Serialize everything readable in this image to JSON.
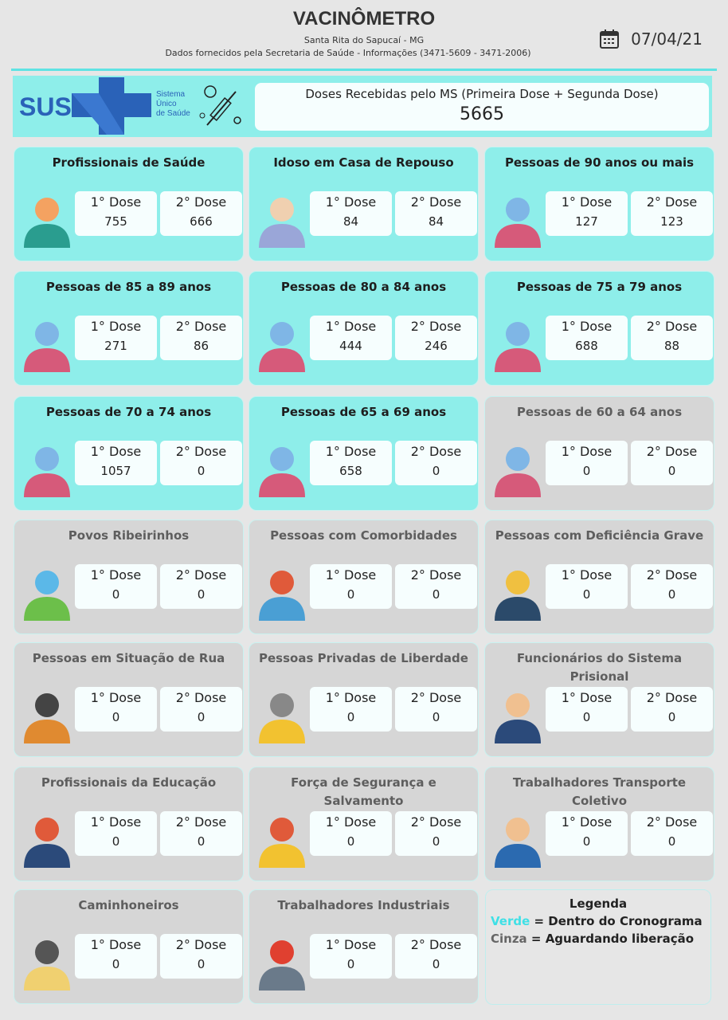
{
  "header": {
    "title": "VACINÔMETRO",
    "city": "Santa Rita do Sapucaí - MG",
    "source": "Dados fornecidos pela Secretaria de Saúde - Informações (3471-5609 - 3471-2006)",
    "date": "07/04/21",
    "date_icon": "calendar-icon"
  },
  "banner": {
    "logo_text": "SUS",
    "logo_sub": [
      "Sistema",
      "Único",
      "de Saúde"
    ],
    "doses_label": "Doses Recebidas pelo MS (Primeira Dose + Segunda Dose)",
    "doses_value": "5665"
  },
  "dose_labels": {
    "first": "1° Dose",
    "second": "2° Dose"
  },
  "colors": {
    "teal": "#8eeeea",
    "gray": "#d6d6d6",
    "verde": "#3fe0e6",
    "cinza": "#666666"
  },
  "cards": [
    {
      "title": "Profissionais de Saúde",
      "status": "teal",
      "icon": "health-worker-icon",
      "first": "755",
      "second": "666"
    },
    {
      "title": "Idoso em Casa de Repouso",
      "status": "teal",
      "icon": "elderly-couple-icon",
      "first": "84",
      "second": "84"
    },
    {
      "title": "Pessoas de 90 anos ou mais",
      "status": "teal",
      "icon": "elderly-people-icon",
      "first": "127",
      "second": "123"
    },
    {
      "title": "Pessoas de 85 a 89 anos",
      "status": "teal",
      "icon": "elderly-people-icon",
      "first": "271",
      "second": "86"
    },
    {
      "title": "Pessoas de 80 a 84 anos",
      "status": "teal",
      "icon": "elderly-people-icon",
      "first": "444",
      "second": "246"
    },
    {
      "title": "Pessoas de 75 a 79 anos",
      "status": "teal",
      "icon": "elderly-people-icon",
      "first": "688",
      "second": "88"
    },
    {
      "title": "Pessoas de 70 a 74 anos",
      "status": "teal",
      "icon": "elderly-people-icon",
      "first": "1057",
      "second": "0"
    },
    {
      "title": "Pessoas de 65 a 69 anos",
      "status": "teal",
      "icon": "elderly-people-icon",
      "first": "658",
      "second": "0"
    },
    {
      "title": "Pessoas de 60 a 64 anos",
      "status": "gray",
      "icon": "elderly-people-icon",
      "first": "0",
      "second": "0"
    },
    {
      "title": "Povos Ribeirinhos",
      "status": "gray",
      "icon": "river-landscape-icon",
      "first": "0",
      "second": "0"
    },
    {
      "title": "Pessoas com Comorbidades",
      "status": "gray",
      "icon": "medical-record-icon",
      "first": "0",
      "second": "0"
    },
    {
      "title": "Pessoas com Deficiência Grave",
      "status": "gray",
      "icon": "wheelchair-icon",
      "first": "0",
      "second": "0"
    },
    {
      "title": "Pessoas em Situação de Rua",
      "status": "gray",
      "icon": "homeless-icon",
      "first": "0",
      "second": "0"
    },
    {
      "title": "Pessoas Privadas de Liberdade",
      "status": "gray",
      "icon": "handcuffs-icon",
      "first": "0",
      "second": "0"
    },
    {
      "title": "Funcionários do Sistema Prisional",
      "status": "gray",
      "icon": "police-officer-icon",
      "first": "0",
      "second": "0"
    },
    {
      "title": "Profissionais da Educação",
      "status": "gray",
      "icon": "teacher-icon",
      "first": "0",
      "second": "0"
    },
    {
      "title": "Força de Segurança e Salvamento",
      "status": "gray",
      "icon": "rescue-vest-icon",
      "first": "0",
      "second": "0"
    },
    {
      "title": "Trabalhadores Transporte Coletivo",
      "status": "gray",
      "icon": "bus-driver-icon",
      "first": "0",
      "second": "0"
    },
    {
      "title": "Caminhoneiros",
      "status": "gray",
      "icon": "truck-driver-icon",
      "first": "0",
      "second": "0"
    },
    {
      "title": "Trabalhadores Industriais",
      "status": "gray",
      "icon": "industrial-worker-icon",
      "first": "0",
      "second": "0"
    }
  ],
  "legend": {
    "title": "Legenda",
    "verde": "Verde",
    "verde_text": " = Dentro do Cronograma",
    "cinza": "Cinza",
    "cinza_text": " = Aguardando liberação"
  }
}
